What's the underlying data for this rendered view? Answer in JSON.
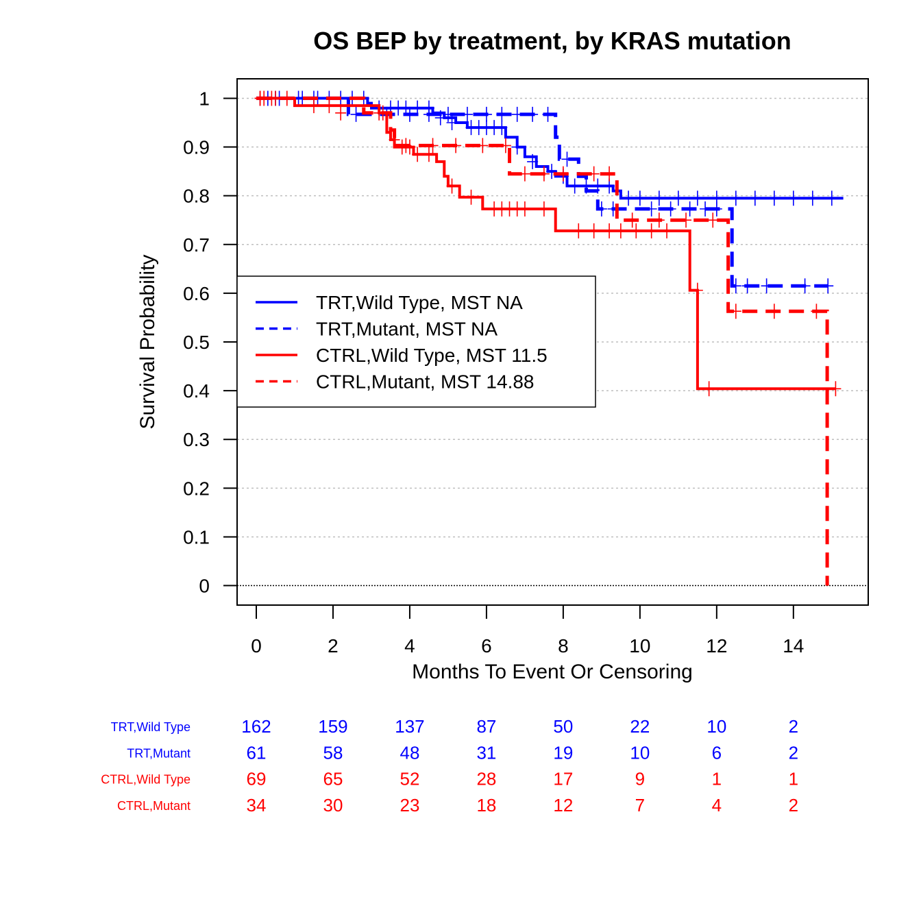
{
  "chart_data": {
    "type": "line",
    "subtype": "kaplan-meier",
    "title": "OS BEP by treatment, by KRAS mutation",
    "xlabel": "Months To Event Or Censoring",
    "ylabel": "Survival Probability",
    "xlim": [
      -0.5,
      15.95
    ],
    "ylim": [
      -0.04,
      1.04
    ],
    "xticks": [
      0,
      2,
      4,
      6,
      8,
      10,
      12,
      14
    ],
    "yticks": [
      0,
      0.1,
      0.2,
      0.3,
      0.4,
      0.5,
      0.6,
      0.7,
      0.8,
      0.9,
      1
    ],
    "ytick_labels": [
      "0",
      "0.1",
      "0.2",
      "0.3",
      "0.4",
      "0.5",
      "0.6",
      "0.7",
      "0.8",
      "0.9",
      "1"
    ],
    "grid": "horizontal dotted",
    "legend_position": "left-middle",
    "colors": {
      "trt": "#0000ff",
      "ctrl": "#ff0000",
      "grid": "#bebebe",
      "axis": "#000000"
    },
    "series": [
      {
        "name": "TRT,Wild Type",
        "legend": "TRT,Wild Type, MST NA",
        "color": "#0000ff",
        "dash": "solid",
        "steps": [
          [
            0,
            1
          ],
          [
            2.9,
            0.99
          ],
          [
            3.0,
            0.98
          ],
          [
            4.6,
            0.97
          ],
          [
            4.9,
            0.96
          ],
          [
            5.2,
            0.95
          ],
          [
            5.5,
            0.94
          ],
          [
            6.5,
            0.92
          ],
          [
            6.8,
            0.9
          ],
          [
            7.0,
            0.88
          ],
          [
            7.3,
            0.86
          ],
          [
            7.6,
            0.85
          ],
          [
            7.8,
            0.84
          ],
          [
            8.1,
            0.82
          ],
          [
            9.3,
            0.81
          ],
          [
            9.5,
            0.795
          ],
          [
            15.3,
            0.795
          ]
        ],
        "censors": [
          [
            0.1,
            1
          ],
          [
            0.3,
            1
          ],
          [
            0.5,
            1
          ],
          [
            1.2,
            1
          ],
          [
            1.5,
            1
          ],
          [
            1.6,
            1
          ],
          [
            1.9,
            1
          ],
          [
            2.2,
            1
          ],
          [
            2.5,
            1
          ],
          [
            2.8,
            1
          ],
          [
            3.2,
            0.98
          ],
          [
            3.5,
            0.98
          ],
          [
            3.7,
            0.98
          ],
          [
            3.9,
            0.98
          ],
          [
            4.2,
            0.98
          ],
          [
            4.5,
            0.98
          ],
          [
            4.8,
            0.96
          ],
          [
            5.1,
            0.95
          ],
          [
            5.6,
            0.94
          ],
          [
            5.8,
            0.94
          ],
          [
            6.0,
            0.94
          ],
          [
            6.2,
            0.94
          ],
          [
            6.4,
            0.94
          ],
          [
            6.8,
            0.9
          ],
          [
            7.2,
            0.87
          ],
          [
            7.7,
            0.85
          ],
          [
            8.0,
            0.84
          ],
          [
            8.3,
            0.82
          ],
          [
            8.6,
            0.82
          ],
          [
            8.9,
            0.82
          ],
          [
            9.2,
            0.82
          ],
          [
            9.7,
            0.795
          ],
          [
            10.0,
            0.795
          ],
          [
            10.5,
            0.795
          ],
          [
            11.0,
            0.795
          ],
          [
            11.5,
            0.795
          ],
          [
            12.0,
            0.795
          ],
          [
            12.5,
            0.795
          ],
          [
            13.0,
            0.795
          ],
          [
            13.5,
            0.795
          ],
          [
            14.0,
            0.795
          ],
          [
            14.5,
            0.795
          ],
          [
            15.0,
            0.795
          ]
        ]
      },
      {
        "name": "TRT,Mutant",
        "legend": "TRT,Mutant, MST NA",
        "color": "#0000ff",
        "dash": "dashed",
        "steps": [
          [
            0,
            1
          ],
          [
            2.4,
            0.967
          ],
          [
            7.75,
            0.967
          ],
          [
            7.8,
            0.92
          ],
          [
            7.9,
            0.875
          ],
          [
            8.4,
            0.84
          ],
          [
            8.6,
            0.81
          ],
          [
            8.9,
            0.773
          ],
          [
            12.35,
            0.773
          ],
          [
            12.4,
            0.615
          ],
          [
            14.9,
            0.615
          ]
        ],
        "censors": [
          [
            0.3,
            1
          ],
          [
            0.6,
            1
          ],
          [
            1.1,
            1
          ],
          [
            2.6,
            0.967
          ],
          [
            3.4,
            0.967
          ],
          [
            4.0,
            0.967
          ],
          [
            4.5,
            0.967
          ],
          [
            5.0,
            0.967
          ],
          [
            5.5,
            0.967
          ],
          [
            6.0,
            0.967
          ],
          [
            6.4,
            0.967
          ],
          [
            6.8,
            0.967
          ],
          [
            7.2,
            0.967
          ],
          [
            7.6,
            0.967
          ],
          [
            8.1,
            0.875
          ],
          [
            9.0,
            0.773
          ],
          [
            9.3,
            0.773
          ],
          [
            10.3,
            0.773
          ],
          [
            10.8,
            0.773
          ],
          [
            11.3,
            0.773
          ],
          [
            11.7,
            0.773
          ],
          [
            12.0,
            0.773
          ],
          [
            12.5,
            0.615
          ],
          [
            12.8,
            0.615
          ],
          [
            13.3,
            0.615
          ],
          [
            14.3,
            0.615
          ],
          [
            14.9,
            0.615
          ]
        ]
      },
      {
        "name": "CTRL,Wild Type",
        "legend": "CTRL,Wild Type, MST 11.5",
        "color": "#ff0000",
        "dash": "solid",
        "steps": [
          [
            0,
            1
          ],
          [
            1.0,
            0.985
          ],
          [
            3.2,
            0.97
          ],
          [
            3.4,
            0.93
          ],
          [
            3.5,
            0.915
          ],
          [
            3.6,
            0.9
          ],
          [
            4.1,
            0.885
          ],
          [
            4.7,
            0.87
          ],
          [
            4.9,
            0.84
          ],
          [
            5.0,
            0.82
          ],
          [
            5.3,
            0.797
          ],
          [
            5.9,
            0.773
          ],
          [
            7.8,
            0.728
          ],
          [
            11.3,
            0.606
          ],
          [
            11.5,
            0.404
          ],
          [
            15.1,
            0.404
          ]
        ],
        "censors": [
          [
            0.1,
            1
          ],
          [
            0.2,
            1
          ],
          [
            0.5,
            1
          ],
          [
            0.8,
            1
          ],
          [
            1.9,
            0.985
          ],
          [
            3.3,
            0.97
          ],
          [
            3.6,
            0.915
          ],
          [
            3.8,
            0.9
          ],
          [
            4.0,
            0.9
          ],
          [
            4.2,
            0.885
          ],
          [
            4.5,
            0.885
          ],
          [
            5.1,
            0.82
          ],
          [
            5.6,
            0.797
          ],
          [
            6.2,
            0.773
          ],
          [
            6.4,
            0.773
          ],
          [
            6.6,
            0.773
          ],
          [
            6.8,
            0.773
          ],
          [
            7.0,
            0.773
          ],
          [
            7.5,
            0.773
          ],
          [
            8.4,
            0.728
          ],
          [
            8.8,
            0.728
          ],
          [
            9.2,
            0.728
          ],
          [
            9.5,
            0.728
          ],
          [
            9.9,
            0.728
          ],
          [
            10.3,
            0.728
          ],
          [
            10.7,
            0.728
          ],
          [
            11.5,
            0.606
          ],
          [
            11.8,
            0.404
          ],
          [
            15.1,
            0.404
          ]
        ]
      },
      {
        "name": "CTRL,Mutant",
        "legend": "CTRL,Mutant, MST 14.88",
        "color": "#ff0000",
        "dash": "dashed",
        "steps": [
          [
            0,
            1
          ],
          [
            2.8,
            0.97
          ],
          [
            3.5,
            0.935
          ],
          [
            3.6,
            0.903
          ],
          [
            6.6,
            0.845
          ],
          [
            9.4,
            0.75
          ],
          [
            12.3,
            0.563
          ],
          [
            14.88,
            0.0
          ]
        ],
        "censors": [
          [
            0.1,
            1
          ],
          [
            0.4,
            1
          ],
          [
            1.5,
            0.985
          ],
          [
            2.2,
            0.97
          ],
          [
            3.2,
            0.97
          ],
          [
            3.9,
            0.903
          ],
          [
            4.6,
            0.903
          ],
          [
            5.2,
            0.903
          ],
          [
            5.9,
            0.903
          ],
          [
            6.5,
            0.903
          ],
          [
            7.0,
            0.845
          ],
          [
            7.5,
            0.845
          ],
          [
            8.0,
            0.845
          ],
          [
            8.8,
            0.845
          ],
          [
            9.2,
            0.845
          ],
          [
            9.8,
            0.75
          ],
          [
            10.5,
            0.75
          ],
          [
            11.2,
            0.75
          ],
          [
            11.9,
            0.75
          ],
          [
            12.5,
            0.563
          ],
          [
            13.5,
            0.563
          ],
          [
            14.6,
            0.563
          ]
        ]
      }
    ],
    "risk_table": {
      "times": [
        0,
        2,
        4,
        6,
        8,
        10,
        12,
        14
      ],
      "rows": [
        {
          "label": "TRT,Wild Type",
          "color": "#0000ff",
          "counts": [
            "162",
            "159",
            "137",
            "87",
            "50",
            "22",
            "10",
            "2"
          ]
        },
        {
          "label": "TRT,Mutant",
          "color": "#0000ff",
          "counts": [
            "61",
            "58",
            "48",
            "31",
            "19",
            "10",
            "6",
            "2"
          ]
        },
        {
          "label": "CTRL,Wild Type",
          "color": "#ff0000",
          "counts": [
            "69",
            "65",
            "52",
            "28",
            "17",
            "9",
            "1",
            "1"
          ]
        },
        {
          "label": "CTRL,Mutant",
          "color": "#ff0000",
          "counts": [
            "34",
            "30",
            "23",
            "18",
            "12",
            "7",
            "4",
            "2"
          ]
        }
      ]
    }
  }
}
